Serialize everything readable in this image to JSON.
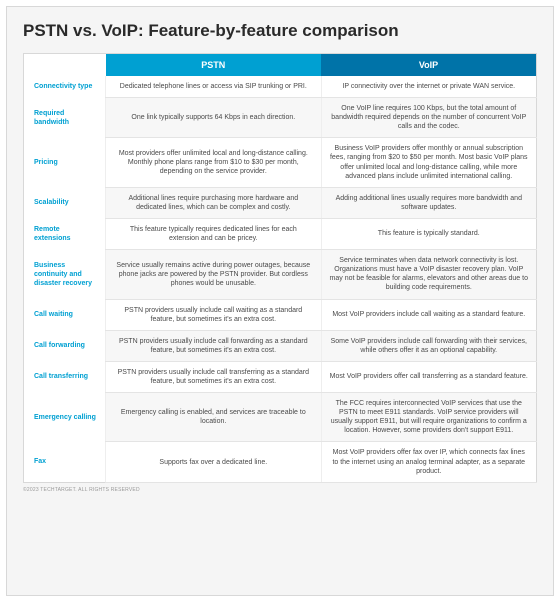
{
  "title": "PSTN vs. VoIP: Feature-by-feature comparison",
  "header_colors": {
    "pstn": "#00a0d2",
    "voip": "#0073a8"
  },
  "columns": {
    "pstn": "PSTN",
    "voip": "VoIP"
  },
  "row_label_color": "#00a0d2",
  "alt_background": "#f7f7f7",
  "border_color": "#d8d8d8",
  "rows": [
    {
      "label": "Connectivity type",
      "pstn": "Dedicated telephone lines or access via SIP trunking or PRI.",
      "voip": "IP connectivity over the internet or private WAN service."
    },
    {
      "label": "Required bandwidth",
      "pstn": "One link typically supports 64 Kbps in each direction.",
      "voip": "One VoIP line requires 100 Kbps, but the total amount of bandwidth required depends on the number of concurrent VoIP calls and the codec."
    },
    {
      "label": "Pricing",
      "pstn": "Most providers offer unlimited local and long-distance calling. Monthly phone plans range from $10 to $30 per month, depending on the service provider.",
      "voip": "Business VoIP providers offer monthly or annual subscription fees, ranging from $20 to $50 per month. Most basic VoIP plans offer unlimited local and long-distance calling, while more advanced plans include unlimited international calling."
    },
    {
      "label": "Scalability",
      "pstn": "Additional lines require purchasing more hardware and dedicated lines, which can be complex and costly.",
      "voip": "Adding additional lines usually requires more bandwidth and software updates."
    },
    {
      "label": "Remote extensions",
      "pstn": "This feature typically requires dedicated lines for each extension and can be pricey.",
      "voip": "This feature is typically standard."
    },
    {
      "label": "Business continuity and disaster recovery",
      "pstn": "Service usually remains active during power outages, because phone jacks are powered by the PSTN provider. But cordless phones would be unusable.",
      "voip": "Service terminates when data network connectivity is lost. Organizations must have a VoIP disaster recovery plan. VoIP may not be feasible for alarms, elevators and other areas due to building code requirements."
    },
    {
      "label": "Call waiting",
      "pstn": "PSTN providers usually include call waiting as a standard feature, but sometimes it's an extra cost.",
      "voip": "Most VoIP providers include call waiting as a standard feature."
    },
    {
      "label": "Call forwarding",
      "pstn": "PSTN providers usually include call forwarding as a standard feature, but sometimes it's an extra cost.",
      "voip": "Some VoIP providers include call forwarding with their services, while others offer it as an optional capability."
    },
    {
      "label": "Call transferring",
      "pstn": "PSTN providers usually include call transferring as a standard feature, but sometimes it's an extra cost.",
      "voip": "Most VoIP providers offer call transferring as a standard feature."
    },
    {
      "label": "Emergency calling",
      "pstn": "Emergency calling is enabled, and services are traceable to location.",
      "voip": "The FCC requires interconnected VoIP services that use the PSTN to meet E911 standards. VoIP service providers will usually support E911, but will require organizations to confirm a location. However, some providers don't support E911."
    },
    {
      "label": "Fax",
      "pstn": "Supports fax over a dedicated line.",
      "voip": "Most VoIP providers offer fax over IP, which connects fax lines to the internet using an analog terminal adapter, as a separate product."
    }
  ],
  "footnote": "©2023 TECHTARGET. ALL RIGHTS RESERVED"
}
